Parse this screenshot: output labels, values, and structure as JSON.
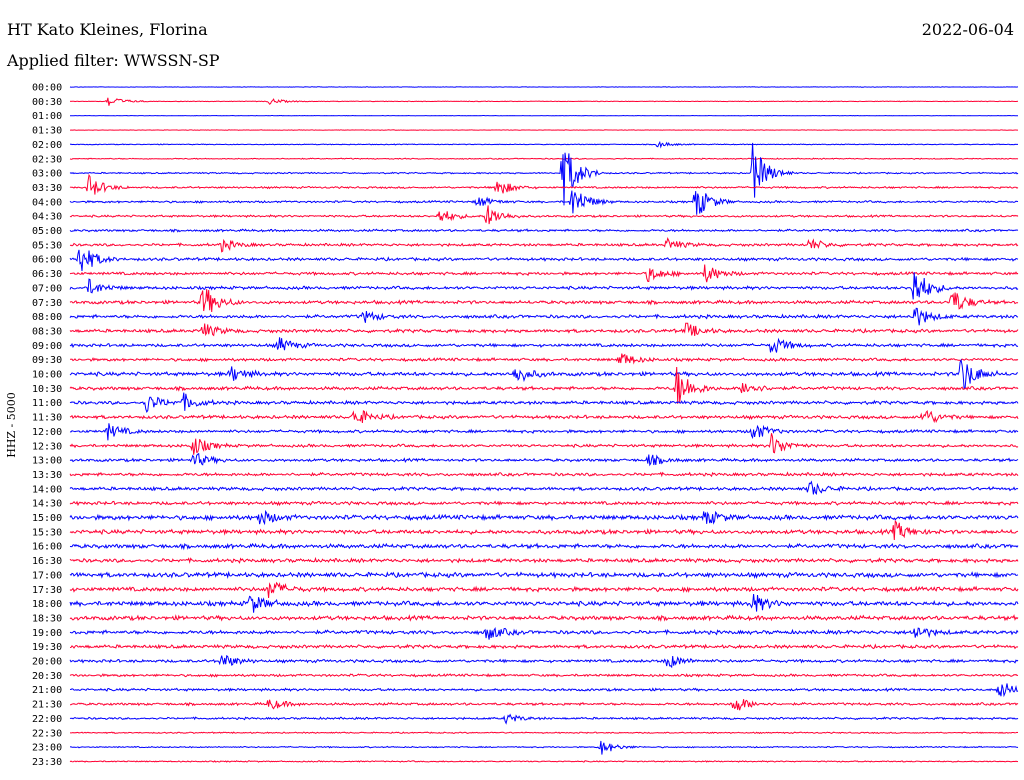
{
  "header": {
    "station": "HT Kato Kleines, Florina",
    "date": "2022-06-04",
    "filter": "Applied filter: WWSSN-SP"
  },
  "chart_data": {
    "type": "line",
    "title": "HT Kato Kleines, Florina",
    "ylabel": "HHZ - 5000",
    "colors": [
      "#0000ff",
      "#ff0033"
    ],
    "rows": [
      "00:00",
      "00:30",
      "01:00",
      "01:30",
      "02:00",
      "02:30",
      "03:00",
      "03:30",
      "04:00",
      "04:30",
      "05:00",
      "05:30",
      "06:00",
      "06:30",
      "07:00",
      "07:30",
      "08:00",
      "08:30",
      "09:00",
      "09:30",
      "10:00",
      "10:30",
      "11:00",
      "11:30",
      "12:00",
      "12:30",
      "13:00",
      "13:30",
      "14:00",
      "14:30",
      "15:00",
      "15:30",
      "16:00",
      "16:30",
      "17:00",
      "17:30",
      "18:00",
      "18:30",
      "19:00",
      "19:30",
      "20:00",
      "20:30",
      "21:00",
      "21:30",
      "22:00",
      "22:30",
      "23:00",
      "23:30"
    ],
    "noise_level": [
      0.2,
      0.3,
      0.2,
      0.2,
      0.4,
      0.5,
      0.7,
      0.9,
      1.0,
      1.0,
      1.1,
      1.3,
      1.4,
      1.4,
      1.5,
      1.6,
      1.6,
      1.6,
      1.5,
      1.4,
      1.8,
      1.6,
      1.6,
      1.6,
      1.4,
      1.4,
      1.4,
      1.5,
      1.6,
      1.6,
      2.2,
      2.0,
      2.0,
      1.8,
      2.2,
      2.0,
      2.2,
      2.0,
      1.8,
      1.6,
      1.4,
      1.2,
      1.2,
      1.2,
      1.0,
      0.6,
      0.6,
      0.6
    ],
    "events": [
      {
        "row": 1,
        "t": 0.04,
        "a": 6
      },
      {
        "row": 1,
        "t": 0.21,
        "a": 3
      },
      {
        "row": 4,
        "t": 0.62,
        "a": 3
      },
      {
        "row": 6,
        "t": 0.52,
        "a": 35
      },
      {
        "row": 6,
        "t": 0.72,
        "a": 30
      },
      {
        "row": 7,
        "t": 0.02,
        "a": 12
      },
      {
        "row": 7,
        "t": 0.45,
        "a": 10
      },
      {
        "row": 8,
        "t": 0.53,
        "a": 18
      },
      {
        "row": 8,
        "t": 0.43,
        "a": 6
      },
      {
        "row": 8,
        "t": 0.66,
        "a": 18
      },
      {
        "row": 9,
        "t": 0.44,
        "a": 12
      },
      {
        "row": 9,
        "t": 0.39,
        "a": 8
      },
      {
        "row": 11,
        "t": 0.16,
        "a": 6
      },
      {
        "row": 11,
        "t": 0.63,
        "a": 6
      },
      {
        "row": 11,
        "t": 0.78,
        "a": 6
      },
      {
        "row": 12,
        "t": 0.01,
        "a": 18
      },
      {
        "row": 13,
        "t": 0.61,
        "a": 8
      },
      {
        "row": 13,
        "t": 0.67,
        "a": 10
      },
      {
        "row": 14,
        "t": 0.89,
        "a": 22
      },
      {
        "row": 14,
        "t": 0.02,
        "a": 8
      },
      {
        "row": 15,
        "t": 0.14,
        "a": 18
      },
      {
        "row": 15,
        "t": 0.93,
        "a": 14
      },
      {
        "row": 16,
        "t": 0.31,
        "a": 6
      },
      {
        "row": 16,
        "t": 0.89,
        "a": 12
      },
      {
        "row": 17,
        "t": 0.14,
        "a": 8
      },
      {
        "row": 17,
        "t": 0.65,
        "a": 8
      },
      {
        "row": 18,
        "t": 0.22,
        "a": 8
      },
      {
        "row": 18,
        "t": 0.74,
        "a": 10
      },
      {
        "row": 19,
        "t": 0.58,
        "a": 8
      },
      {
        "row": 20,
        "t": 0.47,
        "a": 10
      },
      {
        "row": 20,
        "t": 0.94,
        "a": 20
      },
      {
        "row": 20,
        "t": 0.17,
        "a": 8
      },
      {
        "row": 21,
        "t": 0.64,
        "a": 22
      },
      {
        "row": 21,
        "t": 0.71,
        "a": 8
      },
      {
        "row": 22,
        "t": 0.08,
        "a": 10
      },
      {
        "row": 22,
        "t": 0.12,
        "a": 8
      },
      {
        "row": 23,
        "t": 0.3,
        "a": 10
      },
      {
        "row": 23,
        "t": 0.9,
        "a": 10
      },
      {
        "row": 24,
        "t": 0.04,
        "a": 8
      },
      {
        "row": 24,
        "t": 0.72,
        "a": 10
      },
      {
        "row": 25,
        "t": 0.13,
        "a": 10
      },
      {
        "row": 25,
        "t": 0.74,
        "a": 12
      },
      {
        "row": 26,
        "t": 0.13,
        "a": 8
      },
      {
        "row": 26,
        "t": 0.61,
        "a": 6
      },
      {
        "row": 28,
        "t": 0.78,
        "a": 8
      },
      {
        "row": 30,
        "t": 0.2,
        "a": 8
      },
      {
        "row": 30,
        "t": 0.67,
        "a": 8
      },
      {
        "row": 31,
        "t": 0.87,
        "a": 10
      },
      {
        "row": 35,
        "t": 0.21,
        "a": 10
      },
      {
        "row": 36,
        "t": 0.19,
        "a": 10
      },
      {
        "row": 36,
        "t": 0.72,
        "a": 10
      },
      {
        "row": 38,
        "t": 0.44,
        "a": 8
      },
      {
        "row": 38,
        "t": 0.89,
        "a": 8
      },
      {
        "row": 40,
        "t": 0.16,
        "a": 8
      },
      {
        "row": 40,
        "t": 0.63,
        "a": 8
      },
      {
        "row": 42,
        "t": 0.98,
        "a": 10
      },
      {
        "row": 43,
        "t": 0.21,
        "a": 6
      },
      {
        "row": 43,
        "t": 0.7,
        "a": 10
      },
      {
        "row": 44,
        "t": 0.46,
        "a": 5
      },
      {
        "row": 46,
        "t": 0.56,
        "a": 8
      }
    ]
  }
}
